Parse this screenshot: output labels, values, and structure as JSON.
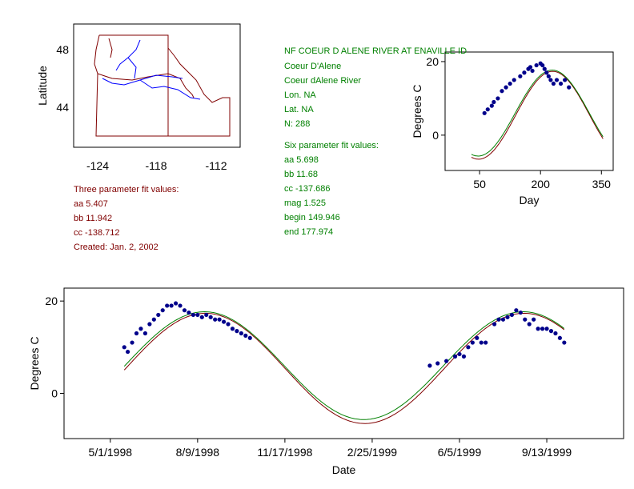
{
  "map": {
    "ylabel": "Latitude",
    "xticks": [
      "-124",
      "-118",
      "-112"
    ],
    "yticks": [
      "48",
      "44"
    ]
  },
  "site": {
    "title": "NF COEUR D ALENE RIVER AT ENAVILLE ID",
    "name": "Coeur D'Alene",
    "river": "Coeur dAlene River",
    "lon": "Lon. NA",
    "lat": "Lat. NA",
    "n": "N: 288"
  },
  "six_fit": {
    "heading": "Six parameter fit values:",
    "aa": "aa 5.698",
    "bb": "bb 11.68",
    "cc": "cc -137.686",
    "mag": "mag 1.525",
    "begin": "begin 149.946",
    "end": "end 177.974"
  },
  "three_fit": {
    "heading": "Three parameter fit values:",
    "aa": "aa 5.407",
    "bb": "bb 11.942",
    "cc": "cc -138.712",
    "created": "Created:   Jan. 2, 2002"
  },
  "colors": {
    "points": "#00008b",
    "fit3": "#800000",
    "fit6": "#008000",
    "map_border": "#800000",
    "rivers": "#0000ff"
  },
  "chart_data": [
    {
      "type": "scatter",
      "title": "",
      "xlabel": "Day",
      "ylabel": "Degrees C",
      "xlim": [
        -35,
        379
      ],
      "ylim": [
        -9.6,
        22.6
      ],
      "xticks": [
        50,
        200,
        350
      ],
      "yticks": [
        0,
        20
      ],
      "xtick_labels": [
        "50",
        "200",
        "350"
      ],
      "ytick_labels": [
        "0",
        "20"
      ],
      "fit_range": [
        30,
        355
      ],
      "fit3": {
        "aa": 5.407,
        "bb": 11.942,
        "cc": -138.712
      },
      "fit6": {
        "aa": 5.698,
        "bb": 11.68,
        "cc": -137.686
      },
      "points": [
        [
          62,
          6
        ],
        [
          70,
          7
        ],
        [
          80,
          8
        ],
        [
          85,
          9
        ],
        [
          95,
          10
        ],
        [
          105,
          12
        ],
        [
          115,
          13
        ],
        [
          125,
          14
        ],
        [
          135,
          15
        ],
        [
          150,
          16
        ],
        [
          160,
          17
        ],
        [
          170,
          18
        ],
        [
          175,
          18.5
        ],
        [
          180,
          17.5
        ],
        [
          190,
          19
        ],
        [
          200,
          19.5
        ],
        [
          205,
          19
        ],
        [
          210,
          18
        ],
        [
          215,
          17
        ],
        [
          220,
          16
        ],
        [
          225,
          15
        ],
        [
          232,
          14
        ],
        [
          240,
          15
        ],
        [
          250,
          14
        ],
        [
          260,
          15
        ],
        [
          270,
          13
        ]
      ]
    },
    {
      "type": "scatter",
      "title": "",
      "xlabel": "Date",
      "ylabel": "Degrees C",
      "x_units": "days since 5/1/1998",
      "xlim": [
        -53,
        588
      ],
      "ylim": [
        -9.8,
        22.8
      ],
      "xticks": [
        0,
        100,
        200,
        300,
        400,
        500
      ],
      "xtick_labels": [
        "5/1/1998",
        "8/9/1998",
        "11/17/1998",
        "2/25/1999",
        "6/5/1999",
        "9/13/1999"
      ],
      "yticks": [
        0,
        20
      ],
      "ytick_labels": [
        "0",
        "20"
      ],
      "start_doy": 121,
      "fit_range": [
        16,
        521
      ],
      "points": [
        [
          16,
          10
        ],
        [
          20,
          9
        ],
        [
          25,
          11
        ],
        [
          30,
          13
        ],
        [
          35,
          14
        ],
        [
          40,
          13
        ],
        [
          45,
          15
        ],
        [
          50,
          16
        ],
        [
          55,
          17
        ],
        [
          60,
          18
        ],
        [
          65,
          19
        ],
        [
          70,
          19
        ],
        [
          75,
          19.5
        ],
        [
          80,
          19
        ],
        [
          85,
          18
        ],
        [
          90,
          17.5
        ],
        [
          95,
          17
        ],
        [
          100,
          17
        ],
        [
          105,
          16.5
        ],
        [
          110,
          17
        ],
        [
          115,
          16.5
        ],
        [
          120,
          16
        ],
        [
          125,
          16
        ],
        [
          130,
          15.5
        ],
        [
          135,
          15
        ],
        [
          140,
          14
        ],
        [
          145,
          13.5
        ],
        [
          150,
          13
        ],
        [
          155,
          12.5
        ],
        [
          160,
          12
        ],
        [
          366,
          6
        ],
        [
          375,
          6.5
        ],
        [
          385,
          7
        ],
        [
          395,
          8
        ],
        [
          400,
          8.5
        ],
        [
          405,
          8
        ],
        [
          410,
          10
        ],
        [
          415,
          11
        ],
        [
          420,
          12
        ],
        [
          425,
          11
        ],
        [
          430,
          11
        ],
        [
          440,
          15
        ],
        [
          445,
          16
        ],
        [
          450,
          16
        ],
        [
          455,
          16.5
        ],
        [
          460,
          17
        ],
        [
          465,
          18
        ],
        [
          470,
          17.5
        ],
        [
          475,
          16
        ],
        [
          480,
          15
        ],
        [
          485,
          16
        ],
        [
          490,
          14
        ],
        [
          495,
          14
        ],
        [
          500,
          14
        ],
        [
          505,
          13.5
        ],
        [
          510,
          13
        ],
        [
          515,
          12
        ],
        [
          520,
          11
        ]
      ]
    }
  ]
}
